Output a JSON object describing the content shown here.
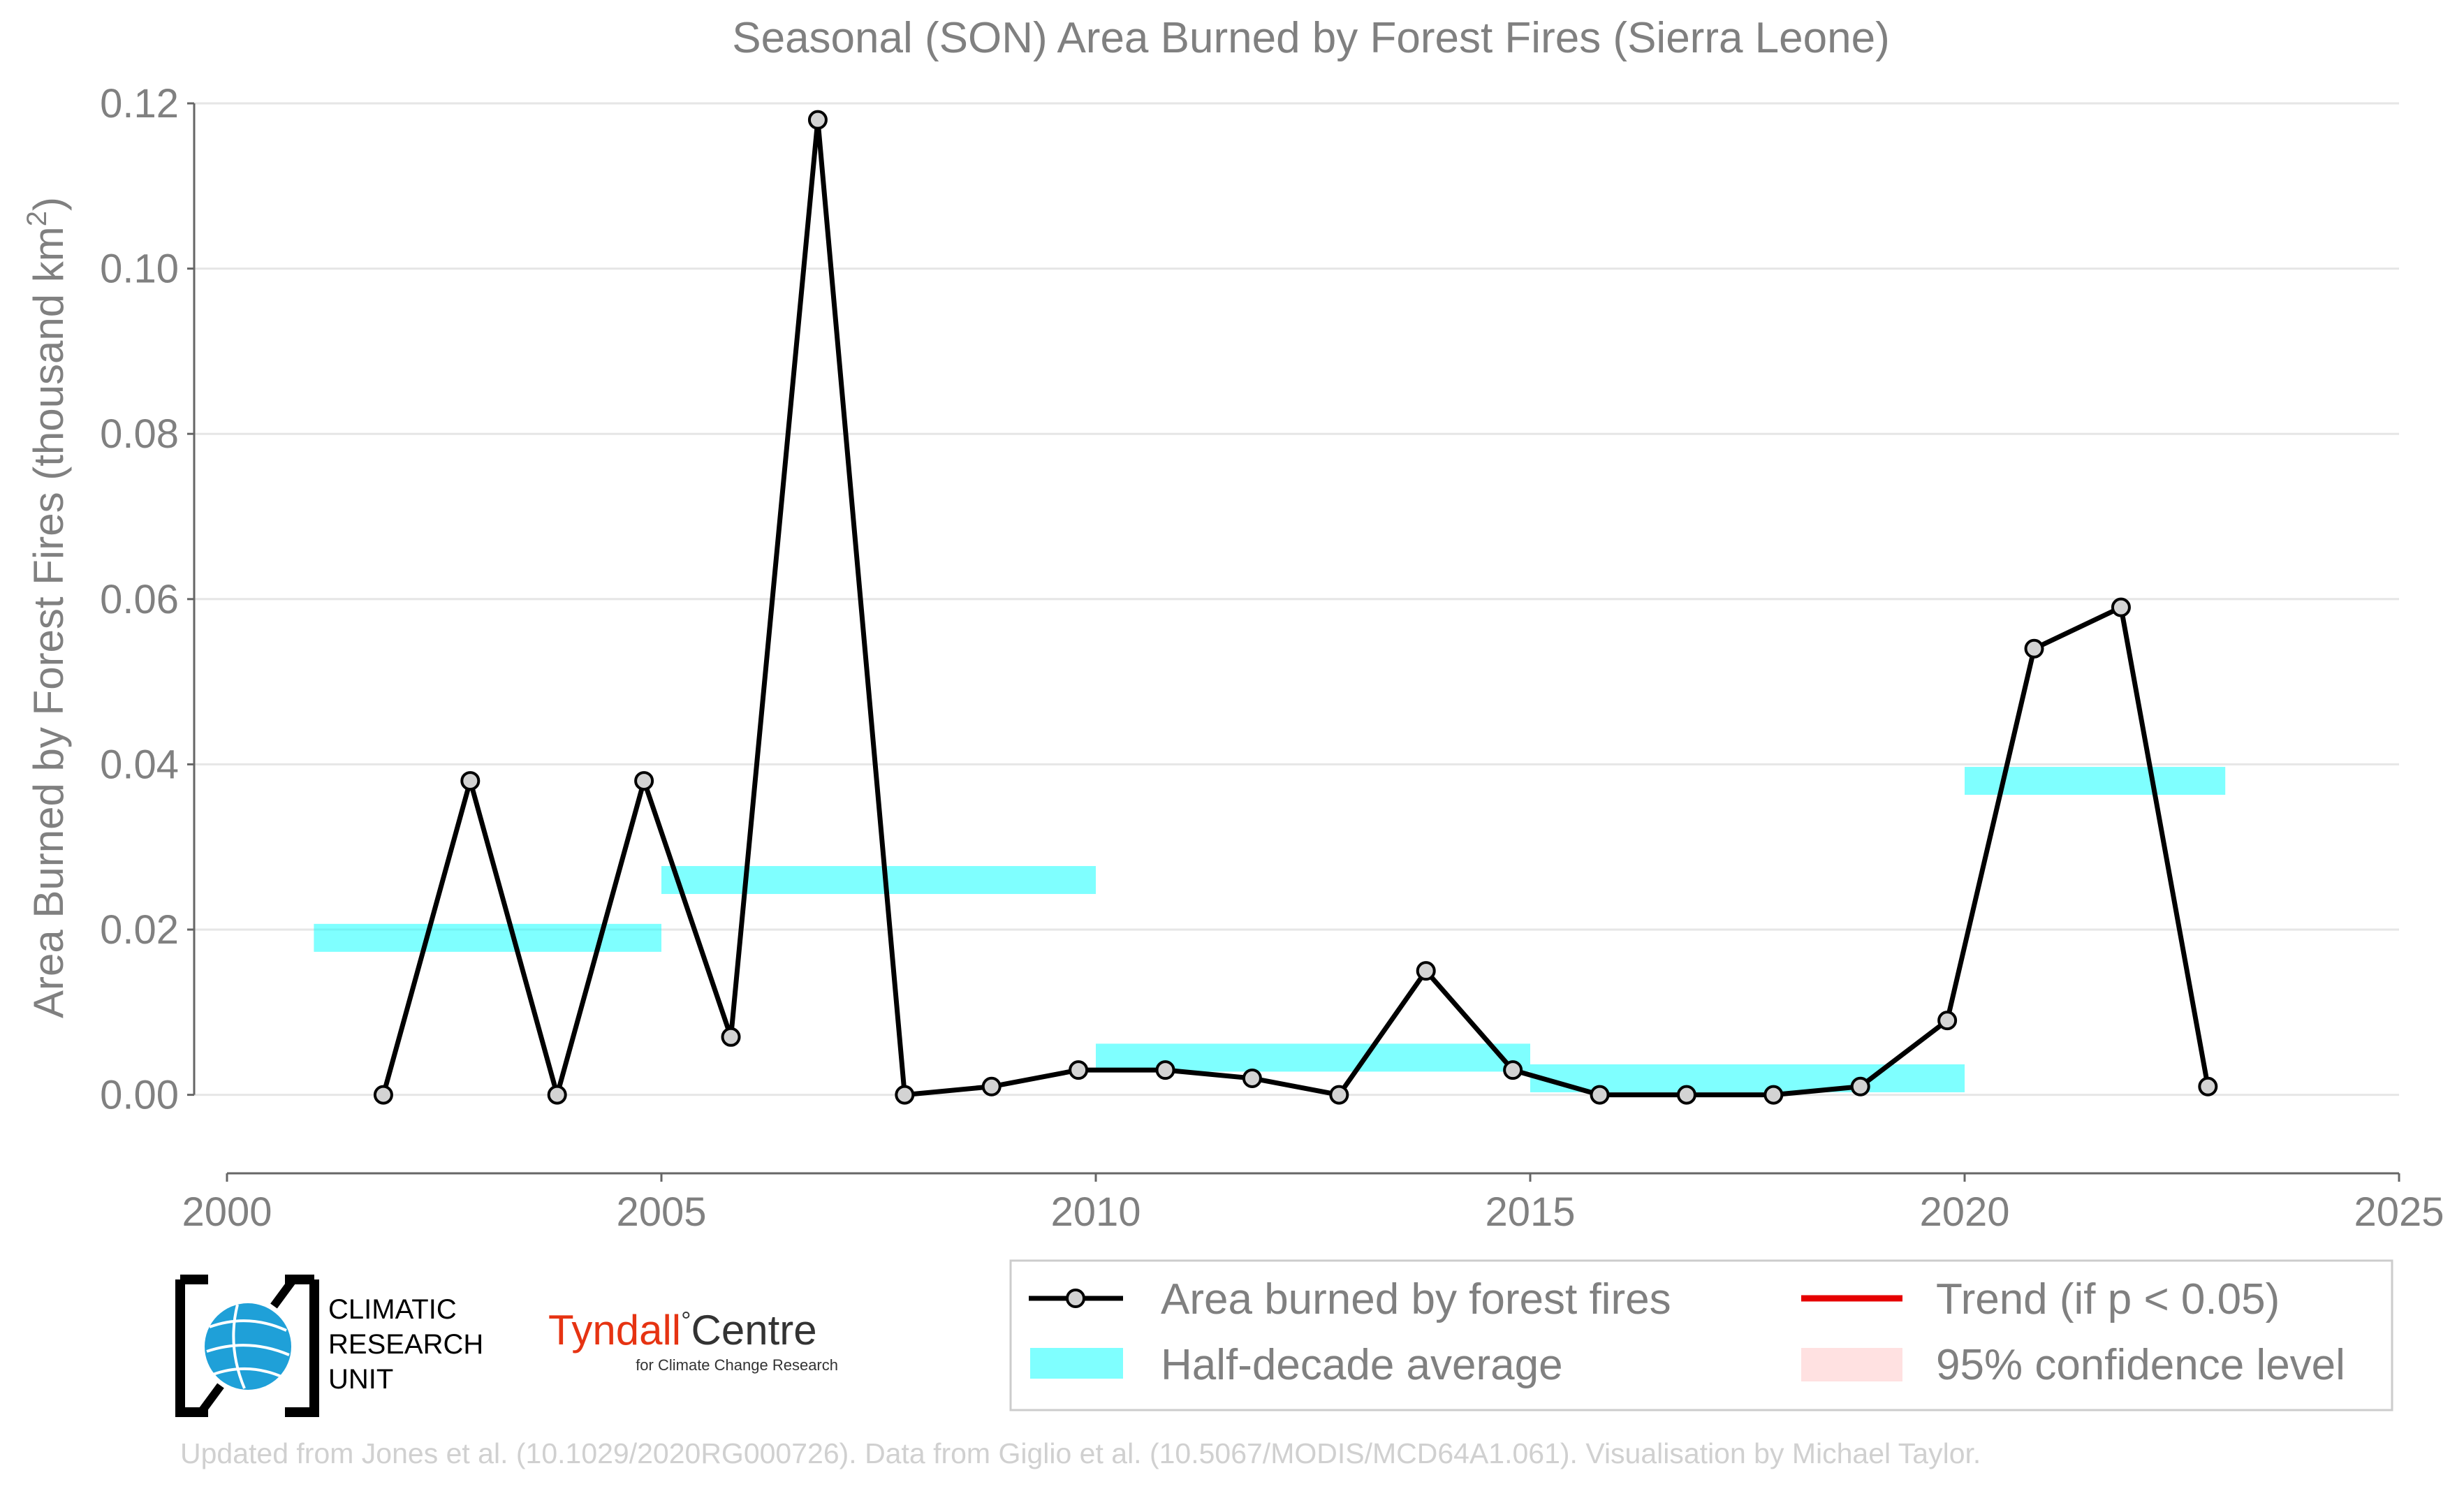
{
  "chart_data": {
    "type": "line",
    "title": "Seasonal (SON) Area Burned by Forest Fires (Sierra Leone)",
    "xlabel": "",
    "ylabel": "Area Burned by Forest Fires (thousand km",
    "ylabel_sup": "2",
    "ylabel_tail": ")",
    "xlim": [
      2000,
      2025
    ],
    "ylim": [
      -0.0095,
      0.12
    ],
    "x_ticks": [
      2000,
      2005,
      2010,
      2015,
      2020,
      2025
    ],
    "x_tick_labels": [
      "2000",
      "2005",
      "2010",
      "2015",
      "2020",
      "2025"
    ],
    "y_ticks": [
      0.0,
      0.02,
      0.04,
      0.06,
      0.08,
      0.1,
      0.12
    ],
    "y_tick_labels": [
      "0.00",
      "0.02",
      "0.04",
      "0.06",
      "0.08",
      "0.10",
      "0.12"
    ],
    "grid": "horizontal",
    "series": [
      {
        "name": "Area burned by forest fires",
        "color": "#000000",
        "marker_fill": "#d3d3d3",
        "x": [
          2001.8,
          2002.8,
          2003.8,
          2004.8,
          2005.8,
          2006.8,
          2007.8,
          2008.8,
          2009.8,
          2010.8,
          2011.8,
          2012.8,
          2013.8,
          2014.8,
          2015.8,
          2016.8,
          2017.8,
          2018.8,
          2019.8,
          2020.8,
          2021.8,
          2022.8
        ],
        "y": [
          0.0,
          0.038,
          0.0,
          0.038,
          0.007,
          0.118,
          0.0,
          0.001,
          0.003,
          0.003,
          0.002,
          0.0,
          0.015,
          0.003,
          0.0,
          0.0,
          0.0,
          0.001,
          0.009,
          0.054,
          0.059,
          0.001
        ]
      }
    ],
    "half_decade_average": {
      "name": "Half-decade average",
      "color": "#00ffff",
      "segments": [
        {
          "x_start": 2001,
          "x_end": 2005,
          "value": 0.019
        },
        {
          "x_start": 2005,
          "x_end": 2010,
          "value": 0.026
        },
        {
          "x_start": 2010,
          "x_end": 2015,
          "value": 0.0045
        },
        {
          "x_start": 2015,
          "x_end": 2020,
          "value": 0.002
        },
        {
          "x_start": 2020,
          "x_end": 2023,
          "value": 0.038
        }
      ]
    },
    "legend": {
      "placement": "bottom-right",
      "items": [
        {
          "label": "Area burned by forest fires",
          "kind": "line-marker",
          "color": "#000000"
        },
        {
          "label": "Trend (if p < 0.05)",
          "kind": "line",
          "color": "#e60000"
        },
        {
          "label": "Half-decade average",
          "kind": "band",
          "color": "#00ffff"
        },
        {
          "label": "95% confidence level",
          "kind": "band",
          "color": "#ffb3b3"
        }
      ]
    }
  },
  "logos": {
    "cru_lines": [
      "CLIMATIC",
      "RESEARCH",
      "UNIT"
    ],
    "tyndall_name": "Tyndall",
    "tyndall_degree": "°",
    "tyndall_centre": "Centre",
    "tyndall_sub": "for Climate Change Research"
  },
  "credit": "Updated from Jones et al. (10.1029/2020RG000726). Data from Giglio et al. (10.5067/MODIS/MCD64A1.061). Visualisation by Michael Taylor."
}
